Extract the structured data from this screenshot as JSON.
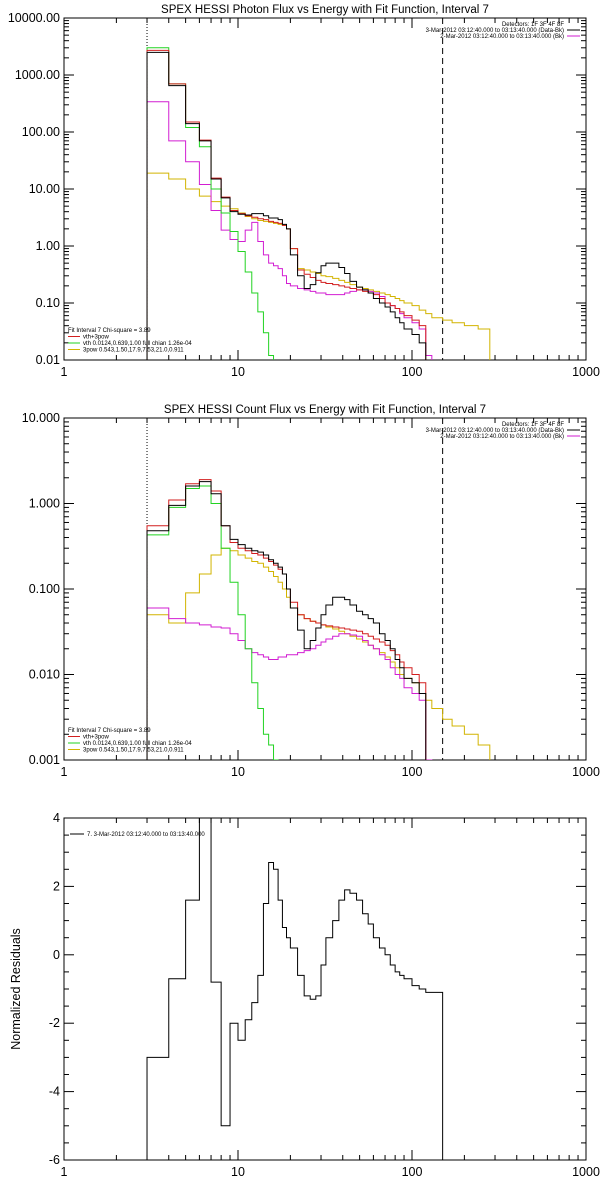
{
  "chart_data": [
    {
      "type": "line",
      "title": "SPEX HESSI Photon Flux vs Energy with Fit Function, Interval 7",
      "xscale": "log",
      "yscale": "log",
      "xlim": [
        1,
        1000
      ],
      "ylim": [
        0.01,
        10000
      ],
      "xticks": [
        "1",
        "10",
        "100",
        "1000"
      ],
      "yticks": [
        "0.01",
        "0.10",
        "1.00",
        "10.00",
        "100.00",
        "1000.00",
        "10000.00"
      ],
      "vlines": [
        {
          "x": 3,
          "style": "dotted"
        },
        {
          "x": 150,
          "style": "dashed"
        }
      ],
      "header": [
        "Detectors: 1F 3F 4F 8F",
        "3-Mar-2012 03:12:40.000 to 03:13:40.000 (Data-Bk)",
        "2-Mar-2012 03:12:40.000 to 03:13:40.000 (Bk)"
      ],
      "header_colors": [
        "#000000",
        "#000000",
        "#d21ed2"
      ],
      "fit_legend": [
        {
          "text": "Fit Interval 7   Chi-square = 3.89",
          "color": "#000000"
        },
        {
          "text": "vth+3pow",
          "color": "#d21e1e"
        },
        {
          "text": "vth 0.0124,0.639,1.00  full chian 1.26e-04",
          "color": "#22d322"
        },
        {
          "text": "3pow 0.543,1.50,17.9,7.53,21.0,0.911",
          "color": "#d2b400"
        }
      ],
      "edges": [
        3,
        3.5,
        4,
        5,
        6,
        7,
        8,
        9,
        10,
        11,
        12,
        13,
        14,
        15,
        16,
        17,
        18,
        19,
        20,
        22,
        24,
        26,
        28,
        30,
        32,
        35,
        38,
        41,
        44,
        48,
        52,
        56,
        60,
        65,
        70,
        75,
        80,
        85,
        90,
        100,
        110,
        120,
        130,
        150,
        170,
        200,
        240,
        280
      ],
      "series": [
        {
          "name": "Data-Bk",
          "color": "#000000",
          "values": [
            2500,
            2500,
            650,
            140,
            70,
            15,
            7,
            4,
            3.6,
            3.5,
            3.7,
            3.7,
            3.4,
            3.1,
            3.1,
            2.9,
            2.4,
            2.0,
            0.7,
            0.3,
            0.18,
            0.21,
            0.34,
            0.45,
            0.5,
            0.5,
            0.42,
            0.33,
            0.24,
            0.19,
            0.17,
            0.15,
            0.12,
            0.1,
            0.085,
            0.07,
            0.055,
            0.045,
            0.035,
            0.028,
            0.02,
            null,
            null,
            null,
            null,
            null,
            null
          ]
        },
        {
          "name": "vth+3pow",
          "color": "#d21e1e",
          "values": [
            2700,
            2700,
            700,
            150,
            72,
            15.5,
            7.2,
            4.2,
            3.7,
            3.4,
            3.2,
            3.0,
            2.9,
            2.7,
            2.6,
            2.5,
            2.3,
            2.0,
            0.9,
            0.38,
            0.32,
            0.28,
            0.25,
            0.23,
            0.22,
            0.21,
            0.2,
            0.19,
            0.18,
            0.17,
            0.16,
            0.15,
            0.14,
            0.12,
            0.1,
            0.09,
            0.08,
            0.07,
            0.06,
            0.05,
            0.04,
            null,
            null,
            null,
            null,
            null,
            null
          ]
        },
        {
          "name": "vth",
          "color": "#22d322",
          "values": [
            3000,
            3000,
            700,
            120,
            55,
            10,
            3.8,
            1.8,
            0.8,
            0.35,
            0.15,
            0.07,
            0.03,
            0.012,
            null,
            null,
            null,
            null,
            null,
            null,
            null,
            null,
            null,
            null,
            null,
            null,
            null,
            null,
            null,
            null,
            null,
            null,
            null,
            null,
            null,
            null,
            null,
            null,
            null,
            null,
            null,
            null,
            null,
            null,
            null,
            null,
            null
          ]
        },
        {
          "name": "Bk",
          "color": "#d21ed2",
          "values": [
            340,
            340,
            70,
            30,
            12,
            4.2,
            1.9,
            1.3,
            1.2,
            1.9,
            2.6,
            1.2,
            0.7,
            0.5,
            0.45,
            0.4,
            0.3,
            0.22,
            0.2,
            0.18,
            0.17,
            0.16,
            0.15,
            0.15,
            0.14,
            0.14,
            0.14,
            0.15,
            0.16,
            0.17,
            0.17,
            0.16,
            0.15,
            0.13,
            0.1,
            0.09,
            0.08,
            0.065,
            0.055,
            0.045,
            0.035,
            0.012,
            null,
            null,
            null,
            null,
            null
          ]
        },
        {
          "name": "3pow",
          "color": "#d2b400",
          "values": [
            19,
            19,
            15,
            10,
            7.5,
            6,
            5,
            4.5,
            3.8,
            3.3,
            3.0,
            2.8,
            2.7,
            2.6,
            2.5,
            2.4,
            2.3,
            2.0,
            0.9,
            0.4,
            0.38,
            0.35,
            0.33,
            0.3,
            0.29,
            0.27,
            0.25,
            0.23,
            0.21,
            0.19,
            0.18,
            0.17,
            0.16,
            0.15,
            0.14,
            0.13,
            0.12,
            0.11,
            0.1,
            0.09,
            0.075,
            0.065,
            0.055,
            0.05,
            0.045,
            0.04,
            0.035
          ]
        }
      ]
    },
    {
      "type": "line",
      "title": "SPEX HESSI Count Flux vs Energy with Fit Function, Interval 7",
      "xscale": "log",
      "yscale": "log",
      "xlim": [
        1,
        1000
      ],
      "ylim": [
        0.001,
        10
      ],
      "xticks": [
        "1",
        "10",
        "100",
        "1000"
      ],
      "yticks": [
        "0.001",
        "0.010",
        "0.100",
        "1.000",
        "10.000"
      ],
      "vlines": [
        {
          "x": 3,
          "style": "dotted"
        },
        {
          "x": 150,
          "style": "dashed"
        }
      ],
      "header": [
        "Detectors: 1F 3F 4F 8F",
        "3-Mar-2012 03:12:40.000 to 03:13:40.000 (Data-Bk)",
        "2-Mar-2012 03:12:40.000 to 03:13:40.000 (Bk)"
      ],
      "header_colors": [
        "#000000",
        "#000000",
        "#d21ed2"
      ],
      "fit_legend": [
        {
          "text": "Fit Interval 7   Chi-square = 3.89",
          "color": "#000000"
        },
        {
          "text": "vth+3pow",
          "color": "#d21e1e"
        },
        {
          "text": "vth 0.0124,0.639,1.00  full chian 1.26e-04",
          "color": "#22d322"
        },
        {
          "text": "3pow 0.543,1.50,17.9,7.53,21.0,0.911",
          "color": "#d2b400"
        }
      ],
      "edges": [
        3,
        3.5,
        4,
        5,
        6,
        7,
        8,
        9,
        10,
        11,
        12,
        13,
        14,
        15,
        16,
        17,
        18,
        19,
        20,
        22,
        24,
        26,
        28,
        30,
        32,
        35,
        38,
        41,
        44,
        48,
        52,
        56,
        60,
        65,
        70,
        75,
        80,
        85,
        90,
        100,
        110,
        120,
        130,
        150,
        170,
        200,
        240,
        280
      ],
      "series": [
        {
          "name": "Data-Bk",
          "color": "#000000",
          "values": [
            0.48,
            0.48,
            0.95,
            1.6,
            1.8,
            1.3,
            0.55,
            0.38,
            0.33,
            0.3,
            0.28,
            0.27,
            0.25,
            0.22,
            0.2,
            0.18,
            0.15,
            0.1,
            0.06,
            0.033,
            0.02,
            0.025,
            0.035,
            0.05,
            0.065,
            0.08,
            0.08,
            0.075,
            0.065,
            0.055,
            0.05,
            0.045,
            0.04,
            0.03,
            0.025,
            0.02,
            0.015,
            0.012,
            0.009,
            0.008,
            0.006,
            null,
            null,
            null,
            null,
            null,
            null
          ]
        },
        {
          "name": "vth+3pow",
          "color": "#d21e1e",
          "values": [
            0.55,
            0.55,
            1.1,
            1.7,
            1.9,
            1.4,
            0.55,
            0.35,
            0.3,
            0.28,
            0.26,
            0.25,
            0.23,
            0.21,
            0.19,
            0.17,
            0.15,
            0.1,
            0.07,
            0.05,
            0.045,
            0.042,
            0.04,
            0.038,
            0.037,
            0.036,
            0.035,
            0.034,
            0.033,
            0.032,
            0.03,
            0.028,
            0.026,
            0.024,
            0.022,
            0.019,
            0.017,
            0.014,
            0.012,
            0.01,
            0.008,
            null,
            null,
            null,
            null,
            null,
            null
          ]
        },
        {
          "name": "vth",
          "color": "#22d322",
          "values": [
            0.43,
            0.43,
            0.9,
            1.5,
            1.6,
            1.0,
            0.3,
            0.12,
            0.05,
            0.02,
            0.008,
            0.004,
            0.002,
            0.0015,
            0.001,
            null,
            null,
            null,
            null,
            null,
            null,
            null,
            null,
            null,
            null,
            null,
            null,
            null,
            null,
            null,
            null,
            null,
            null,
            null,
            null,
            null,
            null,
            null,
            null,
            null,
            null,
            null,
            null,
            null,
            null,
            null,
            null
          ]
        },
        {
          "name": "Bk",
          "color": "#d21ed2",
          "values": [
            0.06,
            0.06,
            0.045,
            0.04,
            0.038,
            0.036,
            0.035,
            0.03,
            0.025,
            0.02,
            0.018,
            0.017,
            0.016,
            0.015,
            0.015,
            0.016,
            0.016,
            0.017,
            0.017,
            0.018,
            0.019,
            0.02,
            0.022,
            0.024,
            0.026,
            0.028,
            0.03,
            0.03,
            0.029,
            0.028,
            0.025,
            0.022,
            0.02,
            0.017,
            0.015,
            0.012,
            0.01,
            0.009,
            0.007,
            0.006,
            0.005,
            0.001,
            null,
            null,
            null,
            null,
            null
          ]
        },
        {
          "name": "3pow",
          "color": "#d2b400",
          "values": [
            0.05,
            0.05,
            0.04,
            0.09,
            0.15,
            0.25,
            0.3,
            0.28,
            0.25,
            0.23,
            0.21,
            0.2,
            0.18,
            0.16,
            0.14,
            0.12,
            0.1,
            0.08,
            0.06,
            0.05,
            0.045,
            0.042,
            0.04,
            0.038,
            0.036,
            0.034,
            0.032,
            0.03,
            0.028,
            0.026,
            0.024,
            0.022,
            0.02,
            0.018,
            0.016,
            0.014,
            0.012,
            0.01,
            0.009,
            0.008,
            0.006,
            0.005,
            0.004,
            0.003,
            0.0025,
            0.002,
            0.0015
          ]
        }
      ]
    },
    {
      "type": "line",
      "title": "",
      "xscale": "log",
      "yscale": "linear",
      "xlim": [
        1,
        1000
      ],
      "ylim": [
        -6,
        4
      ],
      "xticks": [
        "1",
        "10",
        "100",
        "1000"
      ],
      "yticks": [
        "-6",
        "-4",
        "-2",
        "0",
        "2",
        "4"
      ],
      "ylabel": "Normalized Residuals",
      "legend": "7.  3-Mar-2012 03:12:40.000 to 03:13:40.000",
      "edges": [
        3,
        4,
        5,
        6,
        7,
        8,
        9,
        10,
        11,
        12,
        13,
        14,
        15,
        16,
        17,
        18,
        19,
        20,
        22,
        24,
        26,
        28,
        30,
        32,
        35,
        38,
        41,
        44,
        48,
        52,
        56,
        60,
        65,
        70,
        75,
        80,
        85,
        90,
        100,
        110,
        120,
        130,
        150
      ],
      "series": [
        {
          "name": "",
          "color": "#000000",
          "values": [
            -3.0,
            -0.7,
            1.6,
            4.0,
            -0.8,
            -5.0,
            -2.0,
            -2.5,
            -1.9,
            -1.4,
            -0.6,
            1.5,
            2.7,
            2.5,
            1.6,
            0.8,
            0.5,
            0.2,
            -0.6,
            -1.2,
            -1.3,
            -1.2,
            -0.3,
            0.5,
            1.0,
            1.6,
            1.9,
            1.8,
            1.6,
            1.2,
            0.9,
            0.5,
            0.2,
            0.0,
            -0.3,
            -0.5,
            -0.6,
            -0.7,
            -0.9,
            -1.0,
            -1.1,
            -1.1
          ]
        }
      ]
    }
  ]
}
